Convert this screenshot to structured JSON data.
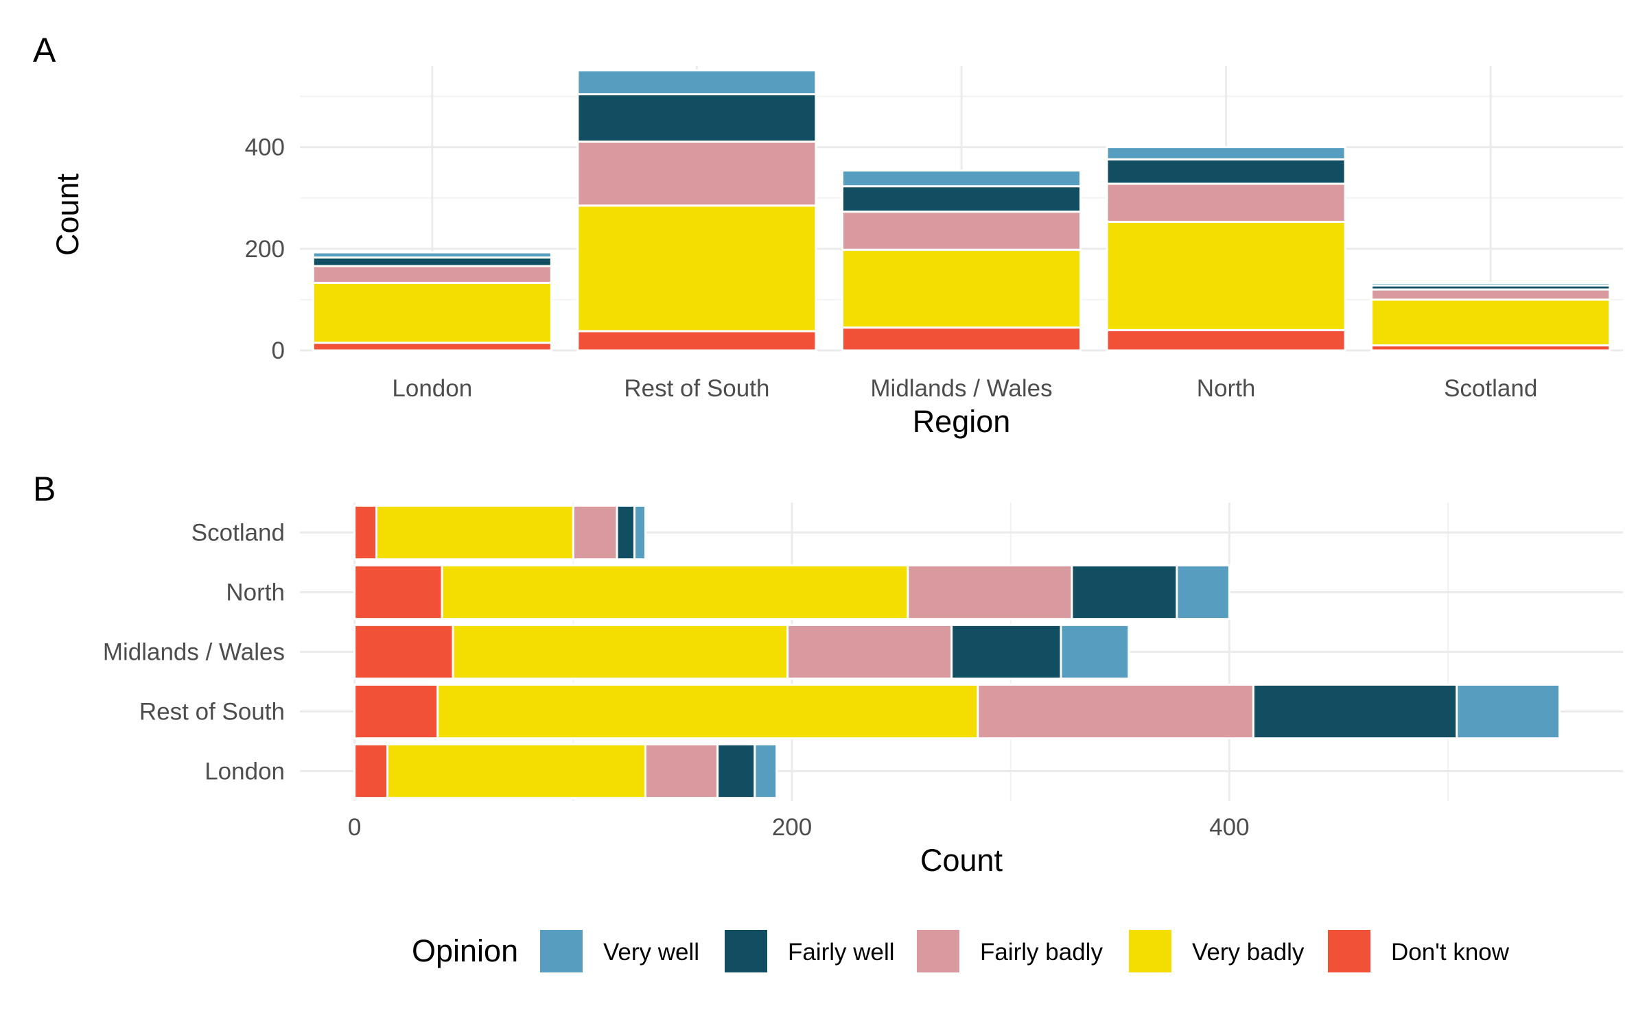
{
  "chart_data": [
    {
      "type": "bar",
      "orientation": "vertical",
      "stacked": true,
      "panel_tag": "A",
      "xlabel": "Region",
      "ylabel": "Count",
      "ylim": [
        0,
        560
      ],
      "y_ticks": [
        "0",
        "200",
        "400"
      ],
      "categories": [
        "London",
        "Rest of South",
        "Midlands / Wales",
        "North",
        "Scotland"
      ],
      "grid": true,
      "series": [
        {
          "name": "Don't know",
          "color": "#F05137",
          "values": [
            15,
            38,
            45,
            40,
            10
          ]
        },
        {
          "name": "Very badly",
          "color": "#F4DD00",
          "values": [
            118,
            247,
            153,
            213,
            90
          ]
        },
        {
          "name": "Fairly badly",
          "color": "#D89A9E",
          "values": [
            33,
            126,
            75,
            75,
            20
          ]
        },
        {
          "name": "Fairly well",
          "color": "#124E61",
          "values": [
            17,
            93,
            50,
            48,
            8
          ]
        },
        {
          "name": "Very well",
          "color": "#569DC0",
          "values": [
            10,
            47,
            31,
            24,
            5
          ]
        }
      ]
    },
    {
      "type": "bar",
      "orientation": "horizontal",
      "stacked": true,
      "panel_tag": "B",
      "xlabel": "Count",
      "ylabel": "",
      "xlim": [
        -25,
        580
      ],
      "x_ticks": [
        "0",
        "200",
        "400"
      ],
      "categories": [
        "London",
        "Rest of South",
        "Midlands / Wales",
        "North",
        "Scotland"
      ],
      "grid": true,
      "series": [
        {
          "name": "Don't know",
          "color": "#F05137",
          "values": [
            15,
            38,
            45,
            40,
            10
          ]
        },
        {
          "name": "Very badly",
          "color": "#F4DD00",
          "values": [
            118,
            247,
            153,
            213,
            90
          ]
        },
        {
          "name": "Fairly badly",
          "color": "#D89A9E",
          "values": [
            33,
            126,
            75,
            75,
            20
          ]
        },
        {
          "name": "Fairly well",
          "color": "#124E61",
          "values": [
            17,
            93,
            50,
            48,
            8
          ]
        },
        {
          "name": "Very well",
          "color": "#569DC0",
          "values": [
            10,
            47,
            31,
            24,
            5
          ]
        }
      ]
    }
  ],
  "legend": {
    "title": "Opinion",
    "position": "bottom",
    "items": [
      {
        "label": "Very well",
        "color": "#569DC0"
      },
      {
        "label": "Fairly well",
        "color": "#124E61"
      },
      {
        "label": "Fairly badly",
        "color": "#D89A9E"
      },
      {
        "label": "Very badly",
        "color": "#F4DD00"
      },
      {
        "label": "Don't know",
        "color": "#F05137"
      }
    ]
  }
}
